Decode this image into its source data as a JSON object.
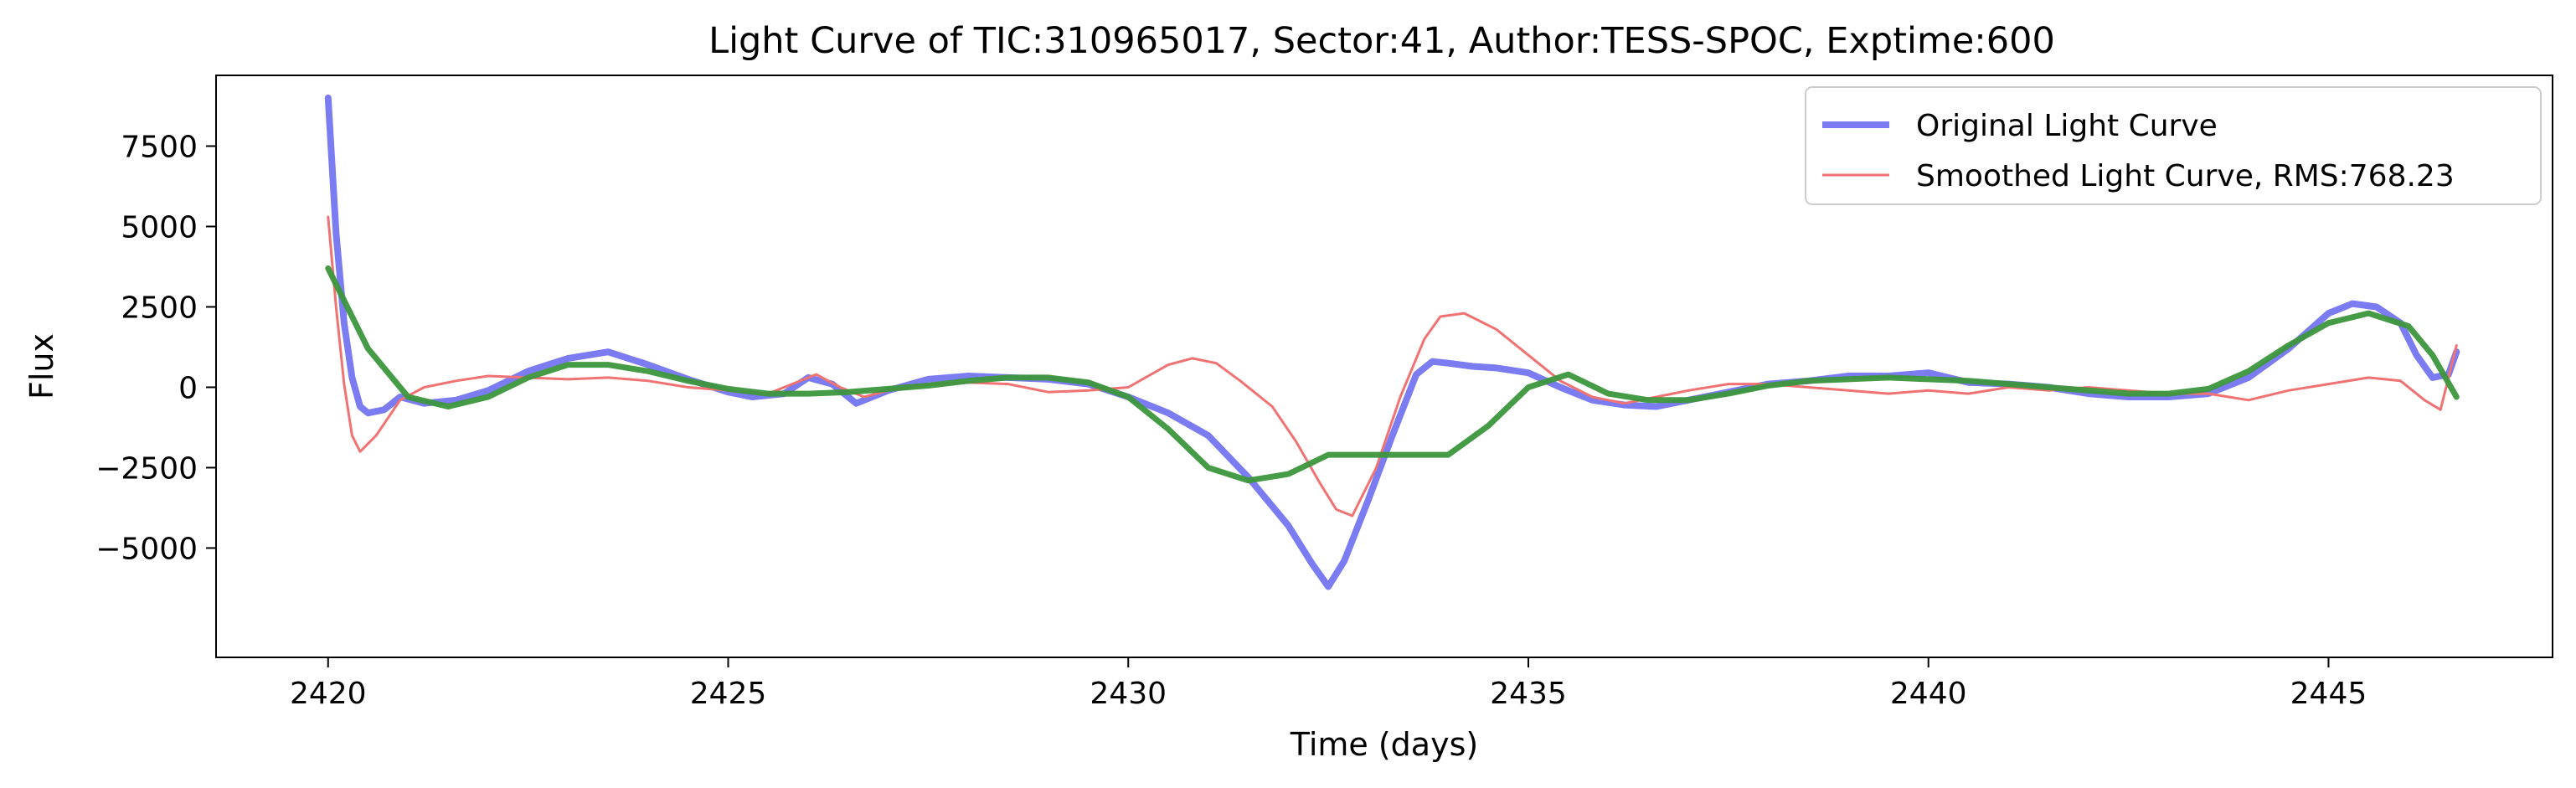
{
  "chart_data": {
    "type": "line",
    "title": "Light Curve of TIC:310965017, Sector:41, Author:TESS-SPOC, Exptime:600",
    "xlabel": "Time (days)",
    "ylabel": "Flux",
    "xlim": [
      2418.6,
      2447.8
    ],
    "ylim": [
      -8400,
      9700
    ],
    "x_ticks": [
      2420,
      2425,
      2430,
      2435,
      2440,
      2445
    ],
    "y_ticks": [
      -5000,
      -2500,
      0,
      2500,
      5000,
      7500
    ],
    "x_tick_labels": [
      "2420",
      "2425",
      "2430",
      "2435",
      "2440",
      "2445"
    ],
    "y_tick_labels": [
      "−5000",
      "−2500",
      "0",
      "2500",
      "5000",
      "7500"
    ],
    "grid": false,
    "legend_position": "top-right",
    "series": [
      {
        "name": "Original Light Curve",
        "color": "#7b7bf2",
        "x": [
          2420.0,
          2420.1,
          2420.2,
          2420.3,
          2420.4,
          2420.5,
          2420.7,
          2420.9,
          2421.2,
          2421.6,
          2422.0,
          2422.5,
          2423.0,
          2423.5,
          2424.0,
          2424.5,
          2425.0,
          2425.3,
          2425.7,
          2426.0,
          2426.3,
          2426.6,
          2427.0,
          2427.5,
          2428.0,
          2428.5,
          2429.0,
          2429.5,
          2430.0,
          2430.5,
          2431.0,
          2431.5,
          2432.0,
          2432.3,
          2432.5,
          2432.7,
          2433.0,
          2433.3,
          2433.6,
          2433.8,
          2434.0,
          2434.3,
          2434.6,
          2435.0,
          2435.4,
          2435.8,
          2436.2,
          2436.6,
          2437.0,
          2437.5,
          2438.0,
          2438.5,
          2439.0,
          2439.5,
          2440.0,
          2440.5,
          2441.0,
          2441.5,
          2442.0,
          2442.5,
          2443.0,
          2443.5,
          2444.0,
          2444.5,
          2445.0,
          2445.3,
          2445.6,
          2445.9,
          2446.1,
          2446.3,
          2446.5,
          2446.6
        ],
        "y": [
          9000,
          4800,
          2000,
          300,
          -600,
          -800,
          -700,
          -300,
          -500,
          -400,
          -100,
          500,
          900,
          1100,
          700,
          250,
          -150,
          -300,
          -200,
          300,
          100,
          -500,
          -100,
          250,
          350,
          300,
          250,
          100,
          -300,
          -800,
          -1500,
          -2800,
          -4300,
          -5500,
          -6200,
          -5400,
          -3500,
          -1500,
          400,
          800,
          750,
          650,
          600,
          450,
          0,
          -400,
          -550,
          -600,
          -400,
          -150,
          100,
          200,
          350,
          350,
          450,
          150,
          100,
          0,
          -200,
          -300,
          -300,
          -200,
          300,
          1200,
          2300,
          2600,
          2500,
          2000,
          1000,
          300,
          400,
          1100
        ]
      },
      {
        "name": "Smoothed Light Curve, RMS:768.23",
        "color": "#f07272",
        "x": [
          2420.0,
          2420.1,
          2420.2,
          2420.3,
          2420.4,
          2420.6,
          2420.9,
          2421.2,
          2421.6,
          2422.0,
          2422.5,
          2423.0,
          2423.5,
          2424.0,
          2424.5,
          2425.0,
          2425.5,
          2425.8,
          2426.1,
          2426.4,
          2426.7,
          2427.0,
          2427.5,
          2428.0,
          2428.5,
          2429.0,
          2429.5,
          2430.0,
          2430.5,
          2430.8,
          2431.1,
          2431.4,
          2431.8,
          2432.1,
          2432.4,
          2432.6,
          2432.8,
          2433.1,
          2433.4,
          2433.7,
          2433.9,
          2434.2,
          2434.6,
          2435.0,
          2435.4,
          2435.8,
          2436.2,
          2436.6,
          2437.0,
          2437.5,
          2438.0,
          2438.5,
          2439.0,
          2439.5,
          2440.0,
          2440.5,
          2441.0,
          2441.5,
          2442.0,
          2442.5,
          2443.0,
          2443.5,
          2444.0,
          2444.5,
          2445.0,
          2445.5,
          2445.9,
          2446.2,
          2446.4,
          2446.6
        ],
        "y": [
          5300,
          2500,
          100,
          -1500,
          -2000,
          -1500,
          -400,
          0,
          200,
          350,
          300,
          250,
          300,
          200,
          0,
          -100,
          -200,
          100,
          400,
          0,
          -300,
          -100,
          100,
          150,
          100,
          -150,
          -100,
          0,
          700,
          900,
          750,
          200,
          -600,
          -1700,
          -3000,
          -3800,
          -4000,
          -2500,
          -300,
          1500,
          2200,
          2300,
          1800,
          1000,
          200,
          -300,
          -500,
          -300,
          -100,
          100,
          100,
          0,
          -100,
          -200,
          -100,
          -200,
          0,
          -100,
          0,
          -100,
          -200,
          -200,
          -400,
          -100,
          100,
          300,
          200,
          -400,
          -700,
          1300
        ]
      },
      {
        "name": "",
        "color": "#3c963c",
        "x": [
          2420.0,
          2420.5,
          2421.0,
          2421.5,
          2422.0,
          2422.5,
          2423.0,
          2423.5,
          2424.0,
          2424.5,
          2425.0,
          2425.5,
          2426.0,
          2426.5,
          2427.0,
          2427.5,
          2428.0,
          2428.5,
          2429.0,
          2429.5,
          2430.0,
          2430.5,
          2431.0,
          2431.5,
          2432.0,
          2432.5,
          2433.0,
          2433.5,
          2434.0,
          2434.5,
          2435.0,
          2435.5,
          2436.0,
          2436.5,
          2437.0,
          2437.5,
          2438.0,
          2438.5,
          2439.0,
          2439.5,
          2440.0,
          2440.5,
          2441.0,
          2441.5,
          2442.0,
          2442.5,
          2443.0,
          2443.5,
          2444.0,
          2444.5,
          2445.0,
          2445.5,
          2446.0,
          2446.3,
          2446.6
        ],
        "y": [
          3700,
          1200,
          -300,
          -600,
          -300,
          300,
          700,
          700,
          500,
          200,
          -50,
          -200,
          -200,
          -150,
          -50,
          50,
          200,
          300,
          300,
          150,
          -300,
          -1300,
          -2500,
          -2900,
          -2700,
          -2100,
          -2100,
          -2100,
          -2100,
          -1200,
          0,
          400,
          -200,
          -400,
          -400,
          -200,
          50,
          200,
          250,
          300,
          250,
          200,
          100,
          0,
          -100,
          -200,
          -200,
          -50,
          500,
          1300,
          2000,
          2300,
          1900,
          1000,
          -300
        ]
      }
    ],
    "legend": [
      {
        "label": "Original Light Curve",
        "color": "#7b7bf2"
      },
      {
        "label": "Smoothed Light Curve, RMS:768.23",
        "color": "#f07272"
      }
    ]
  }
}
